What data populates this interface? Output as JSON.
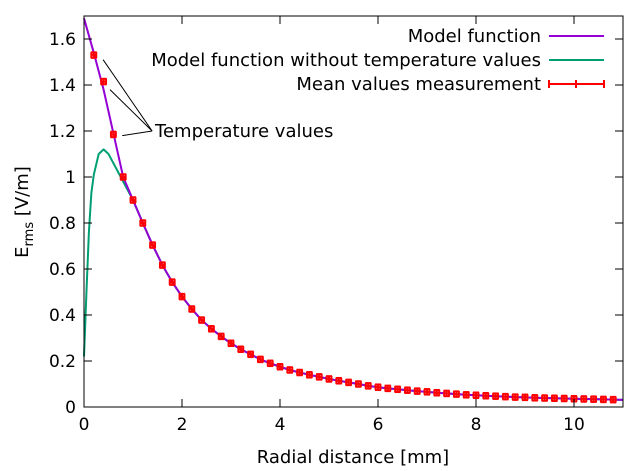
{
  "chart_data": {
    "type": "line",
    "title": "",
    "xlabel": "Radial distance [mm]",
    "ylabel_main": "E",
    "ylabel_sub": "rms",
    "ylabel_unit": " [V/m]",
    "xlim": [
      0,
      11
    ],
    "ylim": [
      0,
      1.7
    ],
    "xticks": [
      0,
      2,
      4,
      6,
      8,
      10
    ],
    "xtick_labels": [
      "0",
      "2",
      "4",
      "6",
      "8",
      "10"
    ],
    "yticks": [
      0,
      0.2,
      0.4,
      0.6,
      0.8,
      1,
      1.2,
      1.4,
      1.6
    ],
    "ytick_labels": [
      "0",
      "0.2",
      "0.4",
      "0.6",
      "0.8",
      "1",
      "1.2",
      "1.4",
      "1.6"
    ],
    "grid": false,
    "legend_position": "top-right",
    "colors": {
      "model": "#9400d3",
      "model_no_temp": "#009e73",
      "measurement": "#ff0000"
    },
    "series": [
      {
        "name": "Model function",
        "type": "line",
        "x": [
          0,
          0.2,
          0.4,
          0.6,
          0.8,
          1.0,
          1.2,
          1.4,
          1.6,
          1.8,
          2.0,
          2.2,
          2.4,
          2.6,
          2.8,
          3.0,
          3.2,
          3.4,
          3.6,
          3.8,
          4.0,
          4.2,
          4.4,
          4.6,
          4.8,
          5.0,
          5.2,
          5.4,
          5.6,
          5.8,
          6.0,
          6.2,
          6.4,
          6.6,
          6.8,
          7.0,
          7.2,
          7.4,
          7.6,
          7.8,
          8.0,
          8.2,
          8.4,
          8.6,
          8.8,
          9.0,
          9.2,
          9.4,
          9.6,
          9.8,
          10.0,
          10.2,
          10.4,
          10.6,
          10.8,
          11.0
        ],
        "y": [
          1.69,
          1.54,
          1.38,
          1.19,
          1.0,
          0.9,
          0.8,
          0.704,
          0.617,
          0.543,
          0.48,
          0.426,
          0.378,
          0.34,
          0.307,
          0.277,
          0.251,
          0.229,
          0.207,
          0.19,
          0.175,
          0.161,
          0.15,
          0.14,
          0.131,
          0.122,
          0.114,
          0.107,
          0.1,
          0.092,
          0.086,
          0.081,
          0.077,
          0.073,
          0.069,
          0.066,
          0.062,
          0.059,
          0.056,
          0.053,
          0.051,
          0.049,
          0.047,
          0.045,
          0.043,
          0.042,
          0.04,
          0.039,
          0.038,
          0.037,
          0.036,
          0.035,
          0.034,
          0.033,
          0.032,
          0.031
        ]
      },
      {
        "name": "Model function without temperature values",
        "type": "line",
        "x": [
          0,
          0.05,
          0.1,
          0.15,
          0.2,
          0.3,
          0.4,
          0.5,
          0.6,
          0.7,
          0.8,
          1.0,
          1.2,
          1.4,
          1.6,
          1.8,
          2.0,
          2.2,
          2.4,
          2.6,
          2.8,
          3.0,
          3.2,
          3.4,
          3.6,
          3.8,
          4.0,
          4.2,
          4.4,
          4.6,
          4.8,
          5.0,
          5.2,
          5.4,
          5.6,
          5.8,
          6.0,
          6.2,
          6.4,
          6.6,
          6.8,
          7.0,
          7.2,
          7.4,
          7.6,
          7.8,
          8.0,
          8.2,
          8.4,
          8.6,
          8.8,
          9.0,
          9.2,
          9.4,
          9.6,
          9.8,
          10.0,
          10.2,
          10.4,
          10.6,
          10.8,
          11.0
        ],
        "y": [
          0.22,
          0.5,
          0.76,
          0.93,
          1.01,
          1.1,
          1.12,
          1.1,
          1.06,
          1.02,
          0.98,
          0.9,
          0.8,
          0.704,
          0.617,
          0.543,
          0.48,
          0.426,
          0.378,
          0.34,
          0.307,
          0.277,
          0.251,
          0.229,
          0.207,
          0.19,
          0.175,
          0.161,
          0.15,
          0.14,
          0.131,
          0.122,
          0.114,
          0.107,
          0.1,
          0.092,
          0.086,
          0.081,
          0.077,
          0.073,
          0.069,
          0.066,
          0.062,
          0.059,
          0.056,
          0.053,
          0.051,
          0.049,
          0.047,
          0.045,
          0.043,
          0.042,
          0.04,
          0.039,
          0.038,
          0.037,
          0.036,
          0.035,
          0.034,
          0.033,
          0.032,
          0.031
        ]
      },
      {
        "name": "Mean values measurement",
        "type": "errorbars",
        "x": [
          0.2,
          0.4,
          0.6,
          0.8,
          1.0,
          1.2,
          1.4,
          1.6,
          1.8,
          2.0,
          2.2,
          2.4,
          2.6,
          2.8,
          3.0,
          3.2,
          3.4,
          3.6,
          3.8,
          4.0,
          4.2,
          4.4,
          4.6,
          4.8,
          5.0,
          5.2,
          5.4,
          5.6,
          5.8,
          6.0,
          6.2,
          6.4,
          6.6,
          6.8,
          7.0,
          7.2,
          7.4,
          7.6,
          7.8,
          8.0,
          8.2,
          8.4,
          8.6,
          8.8,
          9.0,
          9.2,
          9.4,
          9.6,
          9.8,
          10.0,
          10.2,
          10.4,
          10.6,
          10.8
        ],
        "y": [
          1.53,
          1.415,
          1.185,
          1.0,
          0.9,
          0.8,
          0.704,
          0.617,
          0.543,
          0.48,
          0.426,
          0.378,
          0.34,
          0.307,
          0.277,
          0.251,
          0.229,
          0.207,
          0.19,
          0.175,
          0.161,
          0.15,
          0.14,
          0.131,
          0.122,
          0.114,
          0.107,
          0.1,
          0.092,
          0.086,
          0.081,
          0.077,
          0.073,
          0.069,
          0.066,
          0.062,
          0.059,
          0.056,
          0.053,
          0.051,
          0.049,
          0.047,
          0.045,
          0.043,
          0.042,
          0.04,
          0.039,
          0.038,
          0.037,
          0.036,
          0.035,
          0.034,
          0.033,
          0.032
        ],
        "xerr": 0.05,
        "yerr": 0.012
      }
    ],
    "annotations": [
      {
        "text": "Temperature values",
        "x": 1.45,
        "y": 1.2,
        "pointers": [
          [
            0.39,
            1.51
          ],
          [
            0.53,
            1.38
          ],
          [
            0.78,
            1.18
          ]
        ],
        "pointer_origin": [
          1.39,
          1.2
        ]
      }
    ]
  }
}
